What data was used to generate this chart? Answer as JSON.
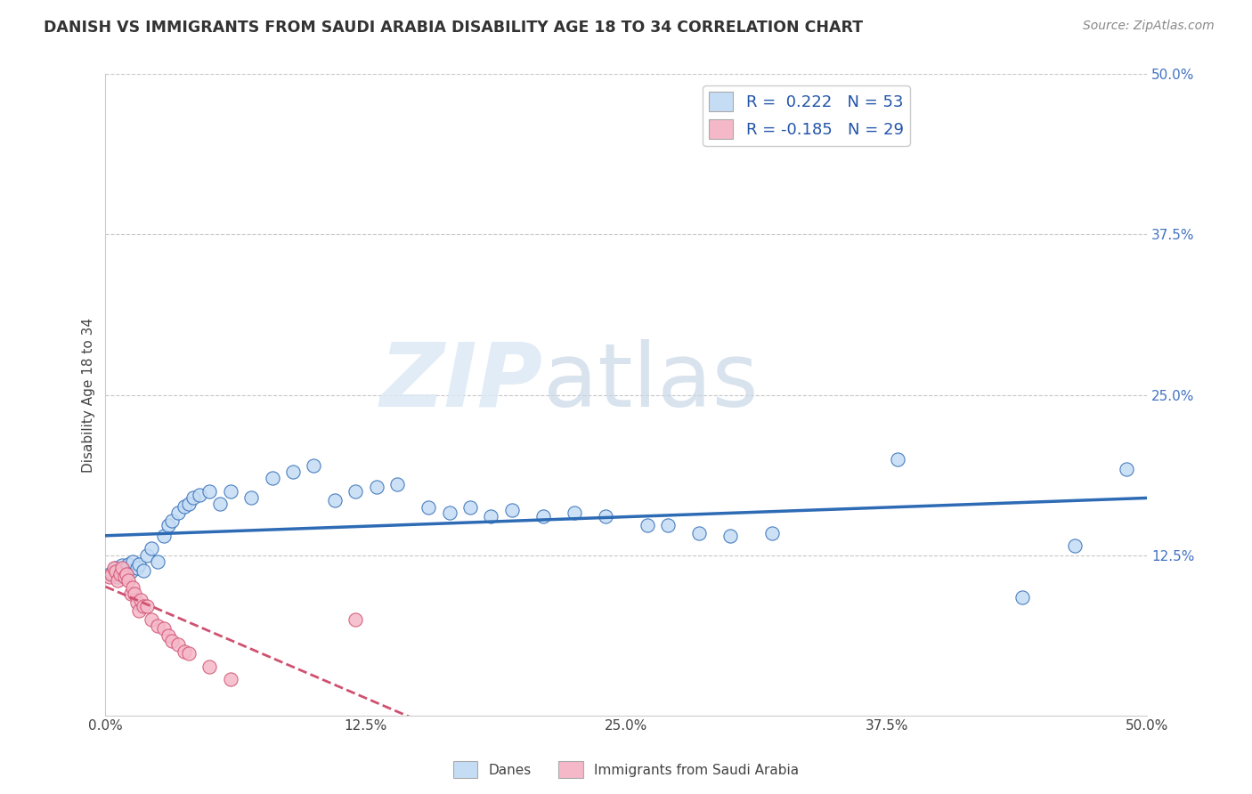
{
  "title": "DANISH VS IMMIGRANTS FROM SAUDI ARABIA DISABILITY AGE 18 TO 34 CORRELATION CHART",
  "source": "Source: ZipAtlas.com",
  "ylabel": "Disability Age 18 to 34",
  "xlim": [
    0.0,
    0.5
  ],
  "ylim": [
    0.0,
    0.5
  ],
  "xtick_vals": [
    0.0,
    0.125,
    0.25,
    0.375,
    0.5
  ],
  "ytick_vals": [
    0.125,
    0.25,
    0.375,
    0.5
  ],
  "danes_R": 0.222,
  "danes_N": 53,
  "immigrants_R": -0.185,
  "immigrants_N": 29,
  "danes_color": "#c5dcf5",
  "danes_line_color": "#2e6bb5",
  "immigrants_color": "#f5b8c8",
  "immigrants_line_color": "#d05070",
  "danes_scatter_x": [
    0.002,
    0.004,
    0.005,
    0.006,
    0.007,
    0.008,
    0.009,
    0.01,
    0.011,
    0.012,
    0.013,
    0.015,
    0.016,
    0.018,
    0.02,
    0.022,
    0.025,
    0.028,
    0.03,
    0.032,
    0.035,
    0.038,
    0.04,
    0.042,
    0.045,
    0.05,
    0.055,
    0.06,
    0.07,
    0.08,
    0.09,
    0.1,
    0.11,
    0.12,
    0.13,
    0.14,
    0.155,
    0.165,
    0.175,
    0.185,
    0.195,
    0.21,
    0.225,
    0.24,
    0.26,
    0.27,
    0.285,
    0.3,
    0.32,
    0.38,
    0.44,
    0.465,
    0.49
  ],
  "danes_scatter_y": [
    0.11,
    0.112,
    0.115,
    0.108,
    0.113,
    0.117,
    0.109,
    0.115,
    0.118,
    0.112,
    0.12,
    0.115,
    0.118,
    0.113,
    0.125,
    0.13,
    0.12,
    0.14,
    0.148,
    0.152,
    0.158,
    0.163,
    0.165,
    0.17,
    0.172,
    0.175,
    0.165,
    0.175,
    0.17,
    0.185,
    0.19,
    0.195,
    0.168,
    0.175,
    0.178,
    0.18,
    0.162,
    0.158,
    0.162,
    0.155,
    0.16,
    0.155,
    0.158,
    0.155,
    0.148,
    0.148,
    0.142,
    0.14,
    0.142,
    0.2,
    0.092,
    0.132,
    0.192
  ],
  "immigrants_scatter_x": [
    0.002,
    0.003,
    0.004,
    0.005,
    0.006,
    0.007,
    0.008,
    0.009,
    0.01,
    0.011,
    0.012,
    0.013,
    0.014,
    0.015,
    0.016,
    0.017,
    0.018,
    0.02,
    0.022,
    0.025,
    0.028,
    0.03,
    0.032,
    0.035,
    0.038,
    0.04,
    0.05,
    0.06,
    0.12
  ],
  "immigrants_scatter_y": [
    0.108,
    0.11,
    0.115,
    0.112,
    0.105,
    0.11,
    0.115,
    0.108,
    0.11,
    0.105,
    0.095,
    0.1,
    0.095,
    0.088,
    0.082,
    0.09,
    0.085,
    0.085,
    0.075,
    0.07,
    0.068,
    0.062,
    0.058,
    0.055,
    0.05,
    0.048,
    0.038,
    0.028,
    0.075
  ],
  "watermark_zip": "ZIP",
  "watermark_atlas": "atlas",
  "legend_label_danes": "Danes",
  "legend_label_immigrants": "Immigrants from Saudi Arabia",
  "background_color": "#ffffff",
  "grid_color": "#c8c8c8"
}
